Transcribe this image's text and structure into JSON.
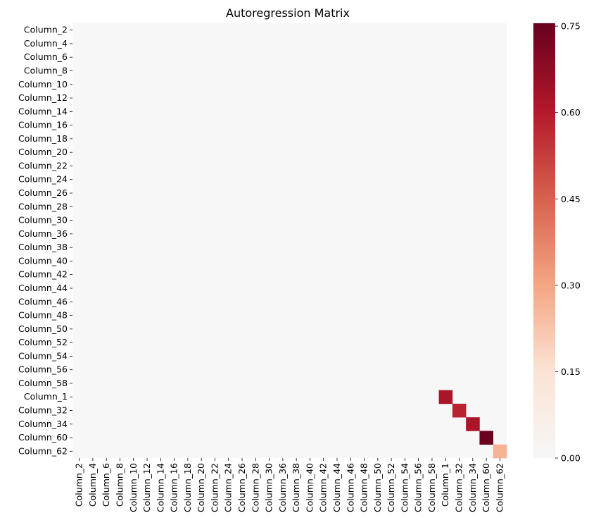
{
  "chart_data": {
    "type": "heatmap",
    "title": "Autoregression Matrix",
    "xlabel": "",
    "ylabel": "",
    "background_value": 0.0,
    "x_labels": [
      "Column_2",
      "Column_4",
      "Column_6",
      "Column_8",
      "Column_10",
      "Column_12",
      "Column_14",
      "Column_16",
      "Column_18",
      "Column_20",
      "Column_22",
      "Column_24",
      "Column_26",
      "Column_28",
      "Column_30",
      "Column_36",
      "Column_38",
      "Column_40",
      "Column_42",
      "Column_44",
      "Column_46",
      "Column_48",
      "Column_50",
      "Column_52",
      "Column_54",
      "Column_56",
      "Column_58",
      "Column_1",
      "Column_32",
      "Column_34",
      "Column_60",
      "Column_62"
    ],
    "y_labels": [
      "Column_2",
      "Column_4",
      "Column_6",
      "Column_8",
      "Column_10",
      "Column_12",
      "Column_14",
      "Column_16",
      "Column_18",
      "Column_20",
      "Column_22",
      "Column_24",
      "Column_26",
      "Column_28",
      "Column_30",
      "Column_36",
      "Column_38",
      "Column_40",
      "Column_42",
      "Column_44",
      "Column_46",
      "Column_48",
      "Column_50",
      "Column_52",
      "Column_54",
      "Column_56",
      "Column_58",
      "Column_1",
      "Column_32",
      "Column_34",
      "Column_60",
      "Column_62"
    ],
    "cells": [
      {
        "row": "Column_1",
        "col": "Column_1",
        "value": 0.62
      },
      {
        "row": "Column_32",
        "col": "Column_32",
        "value": 0.58
      },
      {
        "row": "Column_34",
        "col": "Column_34",
        "value": 0.62
      },
      {
        "row": "Column_60",
        "col": "Column_60",
        "value": 0.75
      },
      {
        "row": "Column_62",
        "col": "Column_62",
        "value": 0.27
      }
    ],
    "colorbar": {
      "min": 0.0,
      "max": 0.755,
      "ticks": [
        "0.00",
        "0.15",
        "0.30",
        "0.45",
        "0.60",
        "0.75"
      ],
      "colormap": "RdBu_r (upper half)",
      "stops": [
        {
          "v": 0.0,
          "color": "#f7f7f7"
        },
        {
          "v": 0.2,
          "color": "#fbe3d5"
        },
        {
          "v": 0.4,
          "color": "#f4a582"
        },
        {
          "v": 0.6,
          "color": "#d6604d"
        },
        {
          "v": 0.8,
          "color": "#b2182b"
        },
        {
          "v": 1.0,
          "color": "#67001f"
        }
      ]
    }
  }
}
